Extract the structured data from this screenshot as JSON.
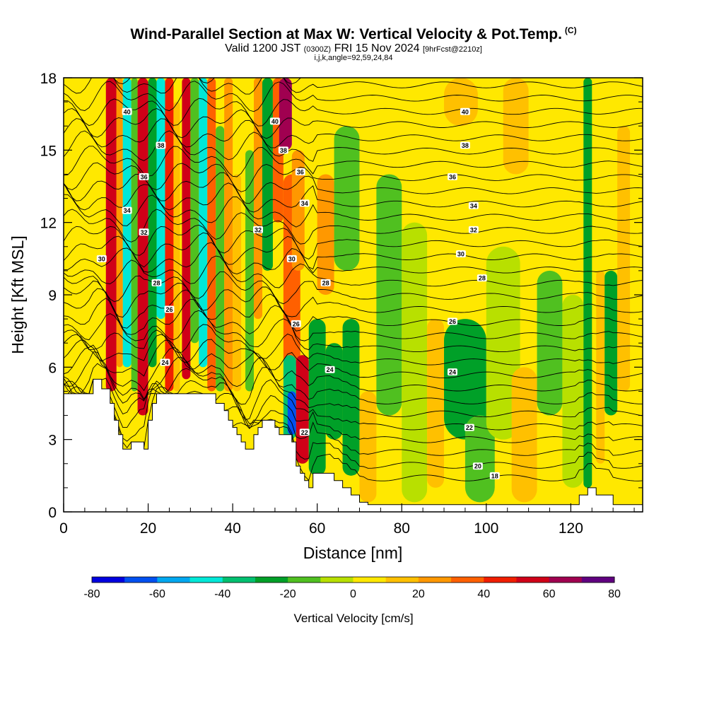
{
  "title": {
    "main": "Wind-Parallel Section at Max W: Vertical Velocity & Pot.Temp.",
    "copyright": "(C)",
    "valid_prefix": "Valid 1200 JST",
    "valid_utc": "(0300Z)",
    "valid_date": "FRI 15 Nov 2024",
    "forecast": "[9hrFcst@2210z]",
    "params": "i,j,k,angle=92,59,24,84"
  },
  "chart_data": {
    "type": "heatmap",
    "xlabel": "Distance [nm]",
    "ylabel": "Height [Kft MSL]",
    "xlim": [
      0,
      137
    ],
    "ylim": [
      0,
      18
    ],
    "x_ticks": [
      "0",
      "20",
      "40",
      "60",
      "80",
      "100",
      "120"
    ],
    "y_ticks": [
      "0",
      "3",
      "6",
      "9",
      "12",
      "15",
      "18"
    ],
    "terrain": [
      [
        0,
        4.9
      ],
      [
        7,
        4.9
      ],
      [
        7,
        5.5
      ],
      [
        9,
        5.5
      ],
      [
        9,
        5.1
      ],
      [
        11,
        5.1
      ],
      [
        11,
        4.5
      ],
      [
        12,
        4.5
      ],
      [
        12,
        3.8
      ],
      [
        13,
        3.8
      ],
      [
        13,
        3.2
      ],
      [
        14,
        3.2
      ],
      [
        14,
        2.6
      ],
      [
        16,
        2.6
      ],
      [
        16,
        2.9
      ],
      [
        19,
        2.9
      ],
      [
        19,
        2.6
      ],
      [
        20,
        2.6
      ],
      [
        20,
        3.8
      ],
      [
        21,
        3.8
      ],
      [
        21,
        4.5
      ],
      [
        22,
        4.5
      ],
      [
        22,
        4.9
      ],
      [
        36,
        4.9
      ],
      [
        36,
        4.5
      ],
      [
        38,
        4.5
      ],
      [
        38,
        4.2
      ],
      [
        39,
        4.2
      ],
      [
        39,
        3.8
      ],
      [
        40,
        3.8
      ],
      [
        40,
        3.5
      ],
      [
        41,
        3.5
      ],
      [
        41,
        3.2
      ],
      [
        42,
        3.2
      ],
      [
        42,
        2.9
      ],
      [
        43,
        2.9
      ],
      [
        43,
        2.6
      ],
      [
        45,
        2.6
      ],
      [
        45,
        3.2
      ],
      [
        46,
        3.2
      ],
      [
        46,
        3.5
      ],
      [
        47,
        3.5
      ],
      [
        47,
        3.8
      ],
      [
        50,
        3.8
      ],
      [
        50,
        3.5
      ],
      [
        51,
        3.5
      ],
      [
        51,
        3.2
      ],
      [
        54,
        3.2
      ],
      [
        54,
        2.9
      ],
      [
        55,
        2.9
      ],
      [
        55,
        1.9
      ],
      [
        56,
        1.9
      ],
      [
        56,
        1.6
      ],
      [
        57,
        1.6
      ],
      [
        57,
        1.3
      ],
      [
        58,
        1.3
      ],
      [
        58,
        1.0
      ],
      [
        59,
        1.0
      ],
      [
        59,
        1.6
      ],
      [
        64,
        1.6
      ],
      [
        64,
        1.3
      ],
      [
        66,
        1.3
      ],
      [
        66,
        1.0
      ],
      [
        68,
        1.0
      ],
      [
        68,
        0.7
      ],
      [
        70,
        0.7
      ],
      [
        70,
        0.4
      ],
      [
        72,
        0.4
      ],
      [
        72,
        0.3
      ],
      [
        122,
        0.3
      ],
      [
        122,
        0.7
      ],
      [
        124,
        0.7
      ],
      [
        124,
        1.0
      ],
      [
        126,
        1.0
      ],
      [
        126,
        0.7
      ],
      [
        130,
        0.7
      ],
      [
        130,
        0.3
      ],
      [
        137,
        0.3
      ]
    ],
    "theta_contours": [
      {
        "label": "18",
        "pos": [
          102,
          1.5
        ]
      },
      {
        "label": "20",
        "pos": [
          98,
          1.9
        ]
      },
      {
        "label": "22",
        "pos": [
          96,
          3.5
        ]
      },
      {
        "label": "24",
        "pos": [
          92,
          5.8
        ]
      },
      {
        "label": "26",
        "pos": [
          92,
          7.9
        ]
      },
      {
        "label": "28",
        "pos": [
          99,
          9.7
        ]
      },
      {
        "label": "30",
        "pos": [
          94,
          10.7
        ]
      },
      {
        "label": "32",
        "pos": [
          97,
          11.7
        ]
      },
      {
        "label": "34",
        "pos": [
          97,
          12.7
        ]
      },
      {
        "label": "36",
        "pos": [
          92,
          13.9
        ]
      },
      {
        "label": "38",
        "pos": [
          95,
          15.2
        ]
      },
      {
        "label": "40",
        "pos": [
          95,
          16.6
        ]
      },
      {
        "label": "40",
        "pos": [
          15,
          16.6
        ]
      },
      {
        "label": "38",
        "pos": [
          23,
          15.2
        ]
      },
      {
        "label": "36",
        "pos": [
          19,
          13.9
        ]
      },
      {
        "label": "34",
        "pos": [
          15,
          12.5
        ]
      },
      {
        "label": "32",
        "pos": [
          19,
          11.6
        ]
      },
      {
        "label": "30",
        "pos": [
          9,
          10.5
        ]
      },
      {
        "label": "28",
        "pos": [
          22,
          9.5
        ]
      },
      {
        "label": "26",
        "pos": [
          25,
          8.4
        ]
      },
      {
        "label": "24",
        "pos": [
          24,
          6.2
        ]
      },
      {
        "label": "40",
        "pos": [
          50,
          16.2
        ]
      },
      {
        "label": "38",
        "pos": [
          52,
          15.0
        ]
      },
      {
        "label": "36",
        "pos": [
          56,
          14.1
        ]
      },
      {
        "label": "34",
        "pos": [
          57,
          12.8
        ]
      },
      {
        "label": "32",
        "pos": [
          46,
          11.7
        ]
      },
      {
        "label": "30",
        "pos": [
          54,
          10.5
        ]
      },
      {
        "label": "28",
        "pos": [
          62,
          9.5
        ]
      },
      {
        "label": "26",
        "pos": [
          55,
          7.8
        ]
      },
      {
        "label": "24",
        "pos": [
          63,
          5.9
        ]
      },
      {
        "label": "22",
        "pos": [
          57,
          3.3
        ]
      }
    ],
    "colorbar": {
      "title": "Vertical Velocity [cm/s]",
      "range": [
        -80,
        80
      ],
      "tick_labels": [
        "-80",
        "-60",
        "-40",
        "-20",
        "0",
        "20",
        "40",
        "60",
        "80"
      ],
      "colors": [
        "#0000e0",
        "#0050f0",
        "#00a8f0",
        "#00e8d8",
        "#00c070",
        "#00a028",
        "#50c020",
        "#b8e000",
        "#ffe800",
        "#ffc000",
        "#ff9800",
        "#ff6000",
        "#f01e00",
        "#d00018",
        "#a00050",
        "#600080"
      ]
    },
    "cells": [
      {
        "x0": 10,
        "x1": 12.5,
        "y0": 5.0,
        "y1": 18,
        "w": 55
      },
      {
        "x0": 12.5,
        "x1": 14,
        "y0": 6,
        "y1": 18,
        "w": 25
      },
      {
        "x0": 14,
        "x1": 16,
        "y0": 6,
        "y1": 18,
        "w": -45
      },
      {
        "x0": 16,
        "x1": 17.5,
        "y0": 5,
        "y1": 18,
        "w": -15
      },
      {
        "x0": 17.5,
        "x1": 20,
        "y0": 4,
        "y1": 18,
        "w": 50
      },
      {
        "x0": 20,
        "x1": 22,
        "y0": 6,
        "y1": 18,
        "w": -25
      },
      {
        "x0": 22,
        "x1": 24,
        "y0": 8,
        "y1": 18,
        "w": -45
      },
      {
        "x0": 24,
        "x1": 26,
        "y0": 5,
        "y1": 18,
        "w": 48
      },
      {
        "x0": 26,
        "x1": 27.5,
        "y0": 5,
        "y1": 17,
        "w": 15
      },
      {
        "x0": 28,
        "x1": 30,
        "y0": 5.5,
        "y1": 18,
        "w": 55
      },
      {
        "x0": 30,
        "x1": 32,
        "y0": 7,
        "y1": 18,
        "w": -20
      },
      {
        "x0": 32,
        "x1": 34,
        "y0": 6,
        "y1": 18,
        "w": -48
      },
      {
        "x0": 34,
        "x1": 36,
        "y0": 5,
        "y1": 18,
        "w": 30
      },
      {
        "x0": 36,
        "x1": 38,
        "y0": 5,
        "y1": 16,
        "w": -15
      },
      {
        "x0": 38,
        "x1": 40,
        "y0": 5,
        "y1": 18,
        "w": 25
      },
      {
        "x0": 40,
        "x1": 42,
        "y0": 5,
        "y1": 14,
        "w": 12
      },
      {
        "x0": 43,
        "x1": 45,
        "y0": 5,
        "y1": 15,
        "w": -15
      },
      {
        "x0": 45,
        "x1": 47,
        "y0": 8,
        "y1": 18,
        "w": 25
      },
      {
        "x0": 47,
        "x1": 49.5,
        "y0": 10,
        "y1": 18,
        "w": -25
      },
      {
        "x0": 49.5,
        "x1": 52,
        "y0": 12,
        "y1": 18,
        "w": 30
      },
      {
        "x0": 51,
        "x1": 54,
        "y0": 15,
        "y1": 18,
        "w": 60
      },
      {
        "x0": 52,
        "x1": 56,
        "y0": 6,
        "y1": 14,
        "w": 35
      },
      {
        "x0": 54,
        "x1": 57,
        "y0": 10,
        "y1": 15,
        "w": 25
      },
      {
        "x0": 52,
        "x1": 55,
        "y0": 3.0,
        "y1": 6.5,
        "w": -40
      },
      {
        "x0": 53,
        "x1": 55,
        "y0": 3.2,
        "y1": 5.0,
        "w": -65
      },
      {
        "x0": 55,
        "x1": 58,
        "y0": 2.0,
        "y1": 6.5,
        "w": 55
      },
      {
        "x0": 58,
        "x1": 62,
        "y0": 1.5,
        "y1": 8,
        "w": -25
      },
      {
        "x0": 62,
        "x1": 66,
        "y0": 3,
        "y1": 7,
        "w": -28
      },
      {
        "x0": 60,
        "x1": 64,
        "y0": 9,
        "y1": 14,
        "w": 25
      },
      {
        "x0": 64,
        "x1": 70,
        "y0": 10,
        "y1": 16,
        "w": -15
      },
      {
        "x0": 66,
        "x1": 70,
        "y0": 1.5,
        "y1": 8,
        "w": -22
      },
      {
        "x0": 70,
        "x1": 74,
        "y0": 0.4,
        "y1": 5,
        "w": 15
      },
      {
        "x0": 74,
        "x1": 80,
        "y0": 4,
        "y1": 14,
        "w": -15
      },
      {
        "x0": 80,
        "x1": 86,
        "y0": 0.4,
        "y1": 12,
        "w": -10
      },
      {
        "x0": 86,
        "x1": 90,
        "y0": 1,
        "y1": 8,
        "w": 12
      },
      {
        "x0": 90,
        "x1": 100,
        "y0": 3,
        "y1": 8,
        "w": -22
      },
      {
        "x0": 95,
        "x1": 102,
        "y0": 0.4,
        "y1": 4,
        "w": -15
      },
      {
        "x0": 100,
        "x1": 108,
        "y0": 3,
        "y1": 11,
        "w": -10
      },
      {
        "x0": 106,
        "x1": 112,
        "y0": 0.4,
        "y1": 6,
        "w": 12
      },
      {
        "x0": 112,
        "x1": 118,
        "y0": 4,
        "y1": 10,
        "w": -20
      },
      {
        "x0": 118,
        "x1": 123,
        "y0": 1,
        "y1": 9,
        "w": -8
      },
      {
        "x0": 123,
        "x1": 125,
        "y0": 1,
        "y1": 18,
        "w": -28
      },
      {
        "x0": 126,
        "x1": 128,
        "y0": 2,
        "y1": 10,
        "w": 12
      },
      {
        "x0": 128,
        "x1": 131,
        "y0": 4,
        "y1": 10,
        "w": -25
      },
      {
        "x0": 131,
        "x1": 134,
        "y0": 5,
        "y1": 16,
        "w": 12
      },
      {
        "x0": 104,
        "x1": 110,
        "y0": 14,
        "y1": 18,
        "w": 15
      },
      {
        "x0": 90,
        "x1": 98,
        "y0": 16,
        "y1": 18,
        "w": 15
      }
    ]
  }
}
